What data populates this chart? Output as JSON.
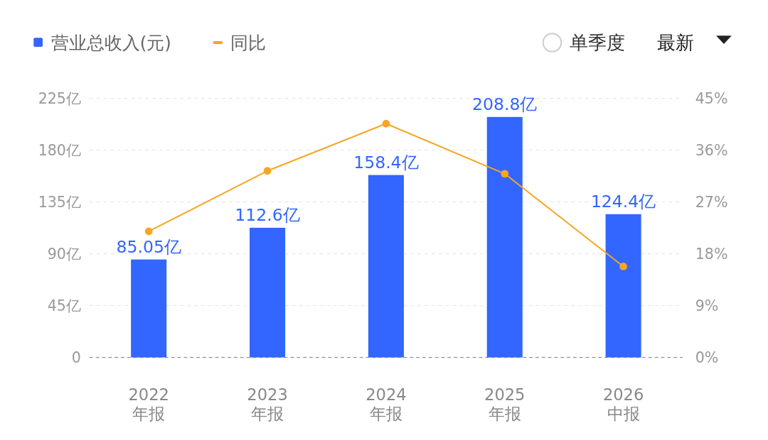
{
  "chart_data": {
    "type": "bar",
    "categories": [
      "2022\n年报",
      "2023\n年报",
      "2024\n年报",
      "2025\n年报",
      "2026\n中报"
    ],
    "series": [
      {
        "name": "营业总收入(元)",
        "color": "#3366ff",
        "values": [
          85.05,
          112.6,
          158.4,
          208.8,
          124.4
        ],
        "value_labels": [
          "85.05亿",
          "112.6亿",
          "158.4亿",
          "208.8亿",
          "124.4亿"
        ]
      },
      {
        "name": "同比",
        "type": "line",
        "axis": "y2",
        "color": "#f5a623",
        "values": [
          21.9,
          32.4,
          40.6,
          31.9,
          15.8
        ]
      }
    ],
    "ylim": [
      0,
      225
    ],
    "yticks": [
      {
        "value": 0,
        "label": "0"
      },
      {
        "value": 45,
        "label": "45亿"
      },
      {
        "value": 90,
        "label": "90亿"
      },
      {
        "value": 135,
        "label": "135亿"
      },
      {
        "value": 180,
        "label": "180亿"
      },
      {
        "value": 225,
        "label": "225亿"
      }
    ],
    "y2lim": [
      0,
      45
    ],
    "y2ticks": [
      {
        "value": 0,
        "label": "0%"
      },
      {
        "value": 9,
        "label": "9%"
      },
      {
        "value": 18,
        "label": "18%"
      },
      {
        "value": 27,
        "label": "27%"
      },
      {
        "value": 36,
        "label": "36%"
      },
      {
        "value": 45,
        "label": "45%"
      }
    ],
    "grid": "y",
    "legend": "top left",
    "marker": "circle",
    "annotations": [
      "单季度",
      "最新"
    ]
  }
}
